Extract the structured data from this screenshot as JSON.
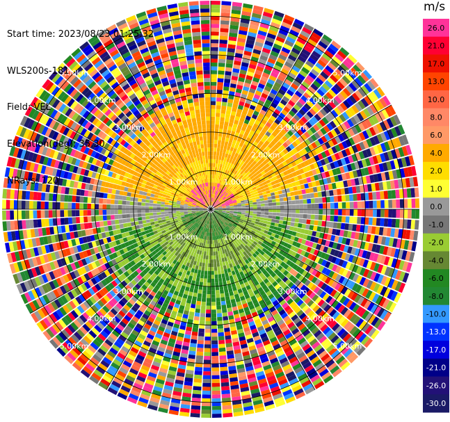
{
  "header": {
    "start_time": "Start time: 2023/08/23 01:25:32",
    "instrument": "WLS200s-181",
    "field": "Field: VEL",
    "elevation": "Elevation(deg): 35.30",
    "nrays": "NRays: 120"
  },
  "chart_data": {
    "type": "heatmap",
    "projection": "polar-ppi",
    "field": "VEL",
    "unit": "m/s",
    "n_rays": 120,
    "range_rings_km": [
      1,
      2,
      3,
      4,
      5
    ],
    "ring_labels": [
      "1.00km",
      "2.00km",
      "3.00km",
      "4.00km",
      "5.00km"
    ],
    "colorbar": {
      "unit": "m/s",
      "tick_labels": [
        "26.0",
        "21.0",
        "17.0",
        "13.0",
        "10.0",
        "8.0",
        "6.0",
        "4.0",
        "2.0",
        "1.0",
        "0.0",
        "-1.0",
        "-2.0",
        "-4.0",
        "-6.0",
        "-8.0",
        "-10.0",
        "-13.0",
        "-17.0",
        "-21.0",
        "-26.0",
        "-30.0"
      ],
      "colors": [
        "#ff3399",
        "#ff0033",
        "#ee1100",
        "#ff4400",
        "#ff6644",
        "#ff8866",
        "#ff9966",
        "#ffaa00",
        "#ffdd00",
        "#ffff33",
        "#999999",
        "#777777",
        "#99cc33",
        "#668833",
        "#228822",
        "#228833",
        "#3399ff",
        "#0033ff",
        "#0000dd",
        "#000088",
        "#221177",
        "#1a1a66"
      ]
    },
    "pattern": {
      "near_positive_region": "north (orange/yellow)",
      "near_negative_region": "south (green)",
      "far_range": "noisy/random colors"
    }
  },
  "colors": {
    "grid": "#000000",
    "ring_label": "#ffffff"
  }
}
